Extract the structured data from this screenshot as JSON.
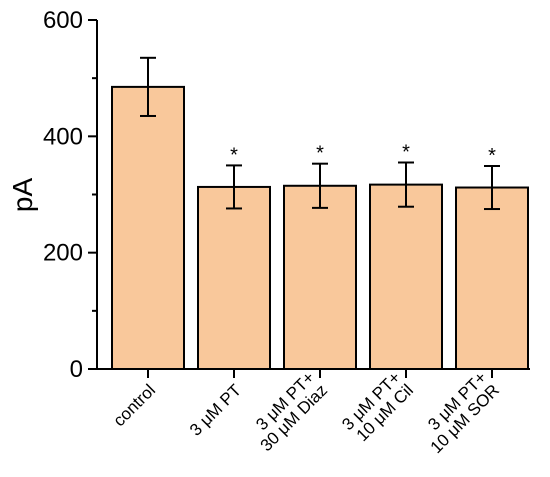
{
  "chart_data": {
    "type": "bar",
    "ylabel": "pA",
    "xlabel": "",
    "ylim": [
      0,
      600
    ],
    "yticks": [
      0,
      200,
      400,
      600
    ],
    "categories": [
      [
        "control"
      ],
      [
        "3 μM PT"
      ],
      [
        "3 μM PT+",
        "30 μM Diaz"
      ],
      [
        "3 μM PT+",
        "10 μM Cil"
      ],
      [
        "3 μM PT+",
        "10 μM SOR"
      ]
    ],
    "values": [
      485,
      313,
      315,
      317,
      312
    ],
    "errors": [
      50,
      37,
      38,
      38,
      37
    ],
    "significance": [
      "",
      "*",
      "*",
      "*",
      "*"
    ],
    "bar_color": "#f9c89b",
    "bar_edge_color": "#000000",
    "grid": false,
    "legend": "none"
  }
}
